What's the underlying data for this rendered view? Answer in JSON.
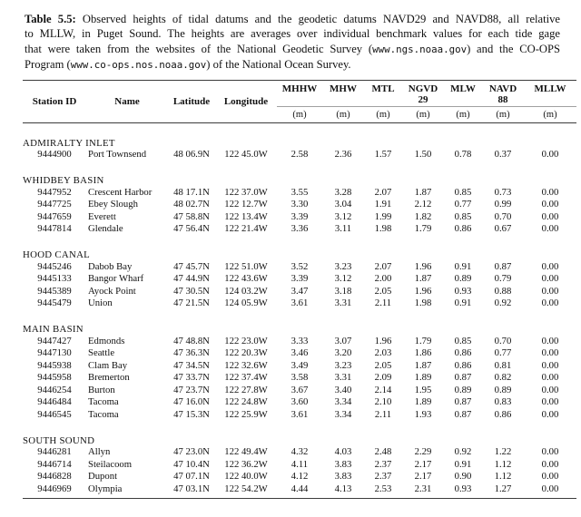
{
  "colors": {
    "background": "#ffffff",
    "text": "#111111",
    "rule_dark": "#3c3c3c",
    "rule_light": "#a0a0a0"
  },
  "caption": {
    "lines": [
      [
        {
          "style": "bold",
          "text": "Table 5.5:"
        },
        {
          "style": "normal",
          "text": " Observed heights of tidal datums and the geodetic datums NAVD29 and NAVD88, all relative"
        }
      ],
      [
        {
          "style": "normal",
          "text": "to MLLW, in Puget Sound. The heights are averages over individual benchmark values for each tide gage"
        }
      ],
      [
        {
          "style": "normal",
          "text": "that were taken from the websites of the National Geodetic Survey ("
        },
        {
          "style": "mono",
          "text": "www.ngs.noaa.gov"
        },
        {
          "style": "normal",
          "text": ") and the CO-OPS"
        }
      ],
      [
        {
          "style": "normal",
          "text": "Program ("
        },
        {
          "style": "mono",
          "text": "www.co-ops.nos.noaa.gov"
        },
        {
          "style": "normal",
          "text": ") of the National Ocean Survey."
        }
      ]
    ]
  },
  "table": {
    "columns": [
      "Station ID",
      "Name",
      "Latitude",
      "Longitude"
    ],
    "value_columns": [
      {
        "line1": "MHHW",
        "line2": ""
      },
      {
        "line1": "MHW",
        "line2": ""
      },
      {
        "line1": "MTL",
        "line2": ""
      },
      {
        "line1": "NGVD",
        "line2": "29"
      },
      {
        "line1": "MLW",
        "line2": ""
      },
      {
        "line1": "NAVD",
        "line2": "88"
      },
      {
        "line1": "MLLW",
        "line2": ""
      }
    ],
    "units_label": "(m)",
    "sections": [
      {
        "name": "ADMIRALTY INLET",
        "rows": [
          {
            "station_id": "9444900",
            "name": "Port Townsend",
            "latitude": "48 06.9N",
            "longitude": "122 45.0W",
            "values": [
              "2.58",
              "2.36",
              "1.57",
              "1.50",
              "0.78",
              "0.37",
              "0.00"
            ]
          }
        ]
      },
      {
        "name": "WHIDBEY BASIN",
        "rows": [
          {
            "station_id": "9447952",
            "name": "Crescent Harbor",
            "latitude": "48 17.1N",
            "longitude": "122 37.0W",
            "values": [
              "3.55",
              "3.28",
              "2.07",
              "1.87",
              "0.85",
              "0.73",
              "0.00"
            ]
          },
          {
            "station_id": "9447725",
            "name": "Ebey Slough",
            "latitude": "48 02.7N",
            "longitude": "122 12.7W",
            "values": [
              "3.30",
              "3.04",
              "1.91",
              "2.12",
              "0.77",
              "0.99",
              "0.00"
            ]
          },
          {
            "station_id": "9447659",
            "name": "Everett",
            "latitude": "47 58.8N",
            "longitude": "122 13.4W",
            "values": [
              "3.39",
              "3.12",
              "1.99",
              "1.82",
              "0.85",
              "0.70",
              "0.00"
            ]
          },
          {
            "station_id": "9447814",
            "name": "Glendale",
            "latitude": "47 56.4N",
            "longitude": "122 21.4W",
            "values": [
              "3.36",
              "3.11",
              "1.98",
              "1.79",
              "0.86",
              "0.67",
              "0.00"
            ]
          }
        ]
      },
      {
        "name": "HOOD CANAL",
        "rows": [
          {
            "station_id": "9445246",
            "name": "Dabob Bay",
            "latitude": "47 45.7N",
            "longitude": "122 51.0W",
            "values": [
              "3.52",
              "3.23",
              "2.07",
              "1.96",
              "0.91",
              "0.87",
              "0.00"
            ]
          },
          {
            "station_id": "9445133",
            "name": "Bangor Wharf",
            "latitude": "47 44.9N",
            "longitude": "122 43.6W",
            "values": [
              "3.39",
              "3.12",
              "2.00",
              "1.87",
              "0.89",
              "0.79",
              "0.00"
            ]
          },
          {
            "station_id": "9445389",
            "name": "Ayock Point",
            "latitude": "47 30.5N",
            "longitude": "124 03.2W",
            "values": [
              "3.47",
              "3.18",
              "2.05",
              "1.96",
              "0.93",
              "0.88",
              "0.00"
            ]
          },
          {
            "station_id": "9445479",
            "name": "Union",
            "latitude": "47 21.5N",
            "longitude": "124 05.9W",
            "values": [
              "3.61",
              "3.31",
              "2.11",
              "1.98",
              "0.91",
              "0.92",
              "0.00"
            ]
          }
        ]
      },
      {
        "name": "MAIN BASIN",
        "rows": [
          {
            "station_id": "9447427",
            "name": "Edmonds",
            "latitude": "47 48.8N",
            "longitude": "122 23.0W",
            "values": [
              "3.33",
              "3.07",
              "1.96",
              "1.79",
              "0.85",
              "0.70",
              "0.00"
            ]
          },
          {
            "station_id": "9447130",
            "name": "Seattle",
            "latitude": "47 36.3N",
            "longitude": "122 20.3W",
            "values": [
              "3.46",
              "3.20",
              "2.03",
              "1.86",
              "0.86",
              "0.77",
              "0.00"
            ]
          },
          {
            "station_id": "9445938",
            "name": "Clam Bay",
            "latitude": "47 34.5N",
            "longitude": "122 32.6W",
            "values": [
              "3.49",
              "3.23",
              "2.05",
              "1.87",
              "0.86",
              "0.81",
              "0.00"
            ]
          },
          {
            "station_id": "9445958",
            "name": "Bremerton",
            "latitude": "47 33.7N",
            "longitude": "122 37.4W",
            "values": [
              "3.58",
              "3.31",
              "2.09",
              "1.89",
              "0.87",
              "0.82",
              "0.00"
            ]
          },
          {
            "station_id": "9446254",
            "name": "Burton",
            "latitude": "47 23.7N",
            "longitude": "122 27.8W",
            "values": [
              "3.67",
              "3.40",
              "2.14",
              "1.95",
              "0.89",
              "0.89",
              "0.00"
            ]
          },
          {
            "station_id": "9446484",
            "name": "Tacoma",
            "latitude": "47 16.0N",
            "longitude": "122 24.8W",
            "values": [
              "3.60",
              "3.34",
              "2.10",
              "1.89",
              "0.87",
              "0.83",
              "0.00"
            ]
          },
          {
            "station_id": "9446545",
            "name": "Tacoma",
            "latitude": "47 15.3N",
            "longitude": "122 25.9W",
            "values": [
              "3.61",
              "3.34",
              "2.11",
              "1.93",
              "0.87",
              "0.86",
              "0.00"
            ]
          }
        ]
      },
      {
        "name": "SOUTH SOUND",
        "rows": [
          {
            "station_id": "9446281",
            "name": "Allyn",
            "latitude": "47 23.0N",
            "longitude": "122 49.4W",
            "values": [
              "4.32",
              "4.03",
              "2.48",
              "2.29",
              "0.92",
              "1.22",
              "0.00"
            ]
          },
          {
            "station_id": "9446714",
            "name": "Steilacoom",
            "latitude": "47 10.4N",
            "longitude": "122 36.2W",
            "values": [
              "4.11",
              "3.83",
              "2.37",
              "2.17",
              "0.91",
              "1.12",
              "0.00"
            ]
          },
          {
            "station_id": "9446828",
            "name": "Dupont",
            "latitude": "47 07.1N",
            "longitude": "122 40.0W",
            "values": [
              "4.12",
              "3.83",
              "2.37",
              "2.17",
              "0.90",
              "1.12",
              "0.00"
            ]
          },
          {
            "station_id": "9446969",
            "name": "Olympia",
            "latitude": "47 03.1N",
            "longitude": "122 54.2W",
            "values": [
              "4.44",
              "4.13",
              "2.53",
              "2.31",
              "0.93",
              "1.27",
              "0.00"
            ]
          }
        ]
      }
    ]
  }
}
